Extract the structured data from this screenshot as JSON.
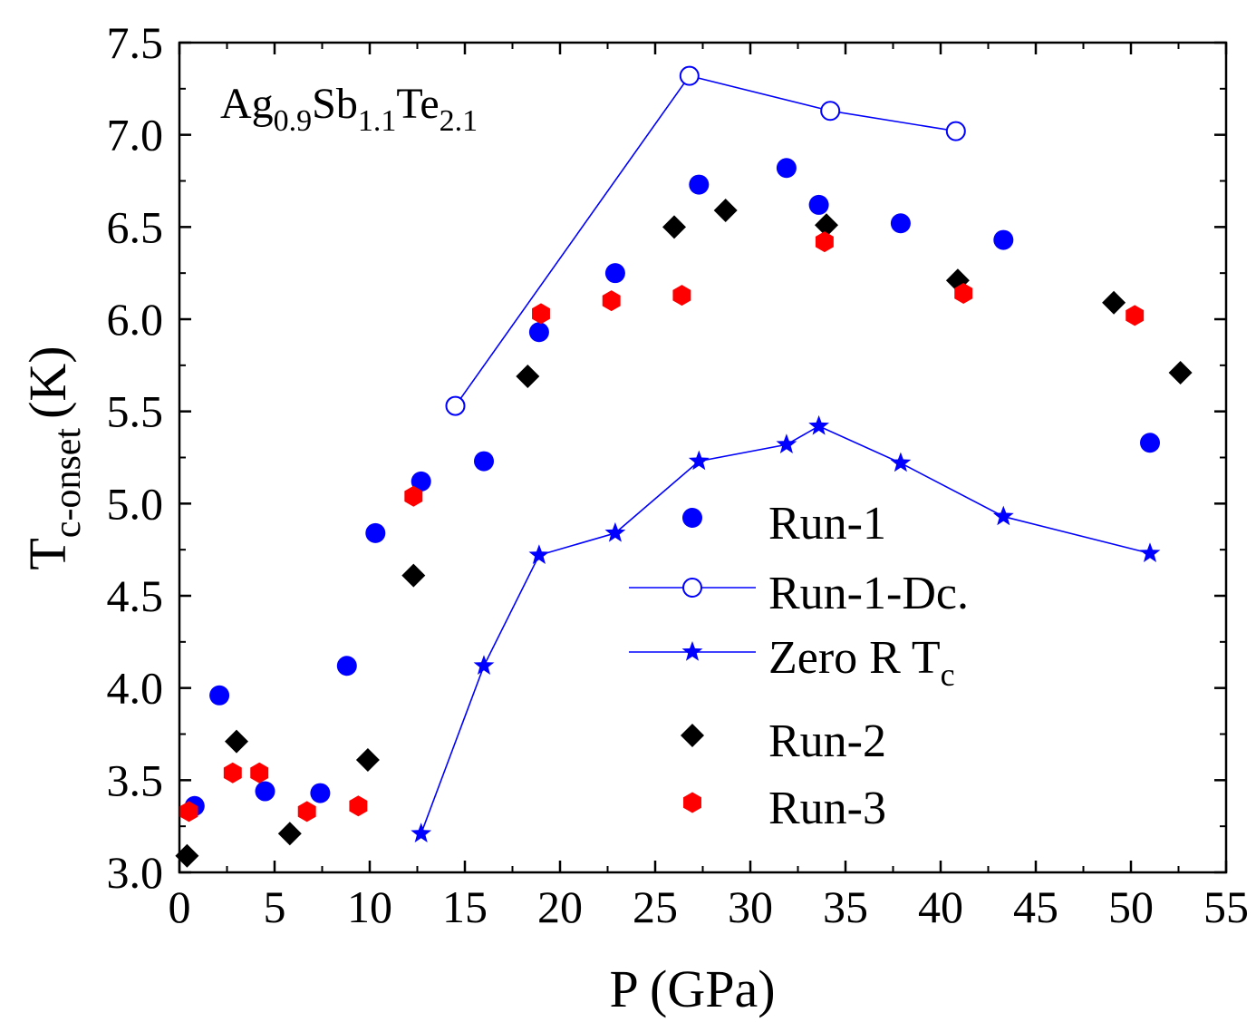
{
  "chart_data": {
    "type": "scatter",
    "sample_label": {
      "base1": "Ag",
      "sub1": "0.9",
      "base2": "Sb",
      "sub2": "1.1",
      "base3": "Te",
      "sub3": "2.1"
    },
    "xlabel": "P (GPa)",
    "ylabel": {
      "main": "T",
      "sub": "c-onset",
      "unit": "(K)"
    },
    "xlim": [
      0,
      55
    ],
    "ylim": [
      3.0,
      7.5
    ],
    "x_ticks": [
      "0",
      "5",
      "10",
      "15",
      "20",
      "25",
      "30",
      "35",
      "40",
      "45",
      "50",
      "55"
    ],
    "y_ticks": [
      "3.0",
      "3.5",
      "4.0",
      "4.5",
      "5.0",
      "5.5",
      "6.0",
      "6.5",
      "7.0",
      "7.5"
    ],
    "series": [
      {
        "name": "Run-1",
        "marker": "circle-filled",
        "color": "#0000ff",
        "line": false,
        "x": [
          0.8,
          2.1,
          4.5,
          7.4,
          8.8,
          10.3,
          12.7,
          16.0,
          18.9,
          22.9,
          27.3,
          31.9,
          33.6,
          37.9,
          43.3,
          51.0
        ],
        "y": [
          3.36,
          3.96,
          3.44,
          3.43,
          4.12,
          4.84,
          5.12,
          5.23,
          5.93,
          6.25,
          6.73,
          6.82,
          6.62,
          6.52,
          6.43,
          5.33
        ]
      },
      {
        "name": "Run-1-Dc.",
        "marker": "circle-open",
        "color": "#0000ff",
        "line": true,
        "x": [
          14.5,
          26.8,
          34.2,
          40.8
        ],
        "y": [
          5.53,
          7.32,
          7.13,
          7.02
        ]
      },
      {
        "name": "Zero R T",
        "name_sub": "c",
        "marker": "star",
        "color": "#0000ff",
        "line": true,
        "x": [
          12.7,
          16.0,
          18.9,
          22.9,
          27.3,
          31.9,
          33.6,
          37.9,
          43.3,
          51.0
        ],
        "y": [
          3.21,
          4.12,
          4.72,
          4.84,
          5.23,
          5.32,
          5.42,
          5.22,
          4.93,
          4.73
        ]
      },
      {
        "name": "Run-2",
        "marker": "diamond",
        "color": "#000000",
        "line": false,
        "x": [
          0.4,
          3.0,
          5.8,
          9.9,
          12.3,
          18.3,
          26.0,
          28.7,
          34.0,
          40.9,
          49.1,
          52.6
        ],
        "y": [
          3.09,
          3.71,
          3.21,
          3.61,
          4.61,
          5.69,
          6.5,
          6.59,
          6.51,
          6.21,
          6.09,
          5.71
        ]
      },
      {
        "name": "Run-3",
        "marker": "hexagon",
        "color": "#ff0000",
        "line": false,
        "x": [
          0.5,
          2.8,
          4.2,
          6.7,
          9.4,
          12.3,
          19.0,
          22.7,
          26.4,
          33.9,
          41.2,
          50.2
        ],
        "y": [
          3.33,
          3.54,
          3.54,
          3.33,
          3.36,
          5.04,
          6.03,
          6.1,
          6.13,
          6.42,
          6.14,
          6.02
        ]
      }
    ]
  }
}
